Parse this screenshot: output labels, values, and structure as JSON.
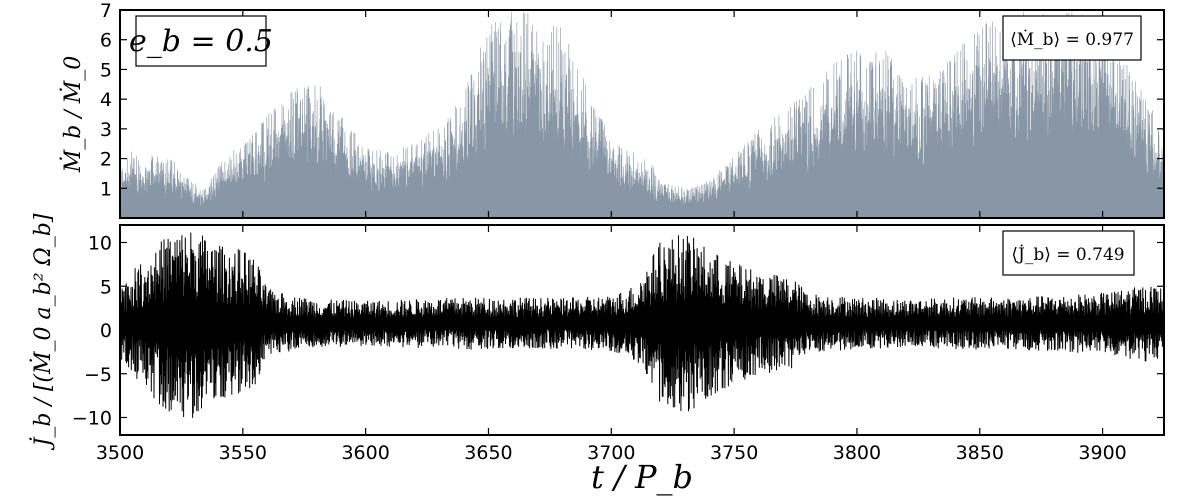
{
  "chart_data": [
    {
      "type": "line",
      "panel": "top",
      "fill": true,
      "color": "#8896a5",
      "badge": "e_b = 0.5",
      "annotation": "⟨Ṁ_b⟩ = 0.977",
      "ylabel": "Ṁ_b / Ṁ_0",
      "xlim": [
        3500,
        3925
      ],
      "ylim": [
        0,
        7
      ],
      "xticks": [
        3500,
        3550,
        3600,
        3650,
        3700,
        3750,
        3800,
        3850,
        3900
      ],
      "yticks": [
        1,
        2,
        3,
        4,
        5,
        6,
        7
      ],
      "envelope": {
        "x": [
          3500,
          3510,
          3520,
          3530,
          3535,
          3540,
          3550,
          3560,
          3570,
          3580,
          3590,
          3600,
          3610,
          3620,
          3630,
          3640,
          3645,
          3650,
          3660,
          3670,
          3680,
          3690,
          3700,
          3710,
          3715,
          3720,
          3730,
          3740,
          3750,
          3760,
          3770,
          3780,
          3790,
          3800,
          3810,
          3820,
          3830,
          3840,
          3850,
          3860,
          3870,
          3880,
          3890,
          3900,
          3910,
          3920,
          3925
        ],
        "peak": [
          2.3,
          2.2,
          2.1,
          1.2,
          1.0,
          1.8,
          2.6,
          3.5,
          4.4,
          4.6,
          3.5,
          2.4,
          2.2,
          2.6,
          3.1,
          4.2,
          5.4,
          6.5,
          7.0,
          7.0,
          6.4,
          4.6,
          2.6,
          2.2,
          2.1,
          1.2,
          1.0,
          1.3,
          2.1,
          3.0,
          3.6,
          4.3,
          5.2,
          5.8,
          5.8,
          5.1,
          4.8,
          5.6,
          6.6,
          7.0,
          7.0,
          6.8,
          7.0,
          6.3,
          5.2,
          3.8,
          2.4
        ],
        "floor": 0.12
      }
    },
    {
      "type": "line",
      "panel": "bottom",
      "fill": false,
      "color": "#000000",
      "annotation": "⟨J̇_b⟩ = 0.749",
      "ylabel": "J̇_b / [(Ṁ_0 a_b² Ω_b]",
      "xlabel": "t / P_b",
      "xlim": [
        3500,
        3925
      ],
      "ylim": [
        -12,
        12
      ],
      "xticks": [
        3500,
        3550,
        3600,
        3650,
        3700,
        3750,
        3800,
        3850,
        3900
      ],
      "yticks": [
        -10,
        -5,
        0,
        5,
        10
      ],
      "envelope": {
        "x": [
          3500,
          3510,
          3520,
          3530,
          3540,
          3550,
          3555,
          3560,
          3570,
          3580,
          3600,
          3620,
          3640,
          3660,
          3680,
          3700,
          3710,
          3720,
          3730,
          3740,
          3750,
          3760,
          3770,
          3775,
          3780,
          3800,
          3820,
          3840,
          3860,
          3880,
          3900,
          3910,
          3920,
          3925
        ],
        "amp": [
          4.5,
          7.5,
          10.5,
          11.0,
          9.0,
          8.5,
          7.5,
          4.0,
          3.2,
          2.8,
          2.6,
          2.8,
          3.0,
          3.0,
          2.9,
          3.2,
          4.5,
          9.5,
          10.5,
          8.5,
          7.0,
          6.0,
          5.5,
          5.0,
          3.5,
          3.0,
          2.8,
          3.0,
          3.0,
          3.2,
          3.5,
          4.0,
          4.5,
          4.0
        ],
        "mean": 0.75
      }
    }
  ]
}
